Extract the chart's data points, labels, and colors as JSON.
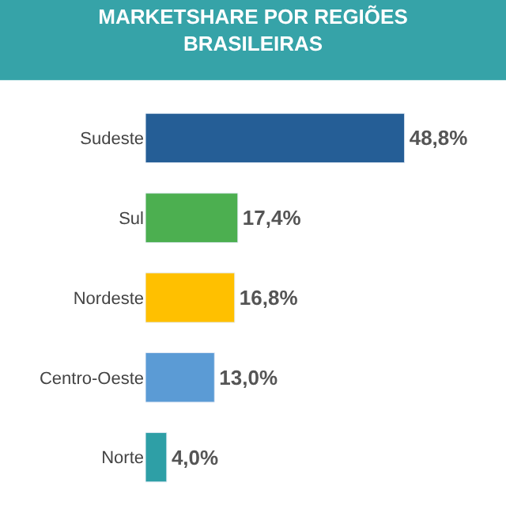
{
  "chart_data": {
    "type": "bar",
    "orientation": "horizontal",
    "title": "MARKETSHARE POR REGIÕES BRASILEIRAS",
    "categories": [
      "Sudeste",
      "Sul",
      "Nordeste",
      "Centro-Oeste",
      "Norte"
    ],
    "values": [
      48.8,
      17.4,
      16.8,
      13.0,
      4.0
    ],
    "colors": [
      "#255e96",
      "#4caf50",
      "#ffc000",
      "#5b9bd5",
      "#2e9fa6"
    ],
    "value_labels": [
      "48,8%",
      "17,4%",
      "16,8%",
      "13,0%",
      "4,0%"
    ]
  }
}
